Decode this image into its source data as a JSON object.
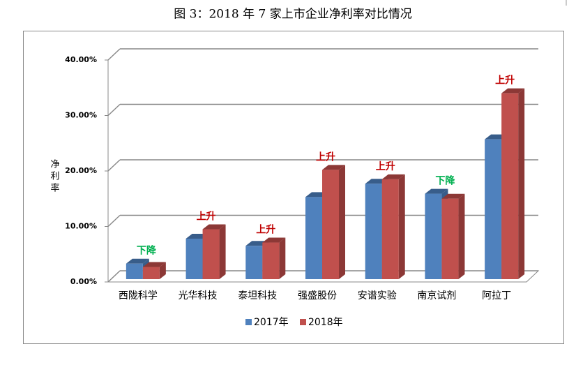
{
  "chart_data": {
    "type": "bar3d",
    "title": "图 3：2018 年 7 家上市企业净利率对比情况",
    "y_label": "净利率",
    "categories": [
      "西陇科学",
      "光华科技",
      "泰坦科技",
      "强盛股份",
      "安谱实验",
      "南京试剂",
      "阿拉丁"
    ],
    "series": [
      {
        "name": "2017年",
        "color": "#4f81bd",
        "side": "#385d8a",
        "values": [
          2.8,
          7.3,
          6.0,
          14.8,
          17.2,
          15.4,
          25.2
        ]
      },
      {
        "name": "2018年",
        "color": "#c0504d",
        "side": "#8c3836",
        "values": [
          2.2,
          9.0,
          6.6,
          19.7,
          18.0,
          14.5,
          33.5
        ]
      }
    ],
    "annotations": [
      {
        "text": "下降",
        "color": "#00b050"
      },
      {
        "text": "上升",
        "color": "#c00000"
      },
      {
        "text": "上升",
        "color": "#c00000"
      },
      {
        "text": "上升",
        "color": "#c00000"
      },
      {
        "text": "上升",
        "color": "#c00000"
      },
      {
        "text": "下降",
        "color": "#00b050"
      },
      {
        "text": "上升",
        "color": "#c00000"
      }
    ],
    "ylim": [
      0,
      40
    ],
    "yticks": [
      {
        "value": 0,
        "label": "0.00%"
      },
      {
        "value": 10,
        "label": "10.00%"
      },
      {
        "value": 20,
        "label": "20.00%"
      },
      {
        "value": 30,
        "label": "30.00%"
      },
      {
        "value": 40,
        "label": "40.00%"
      }
    ],
    "grid": true
  }
}
